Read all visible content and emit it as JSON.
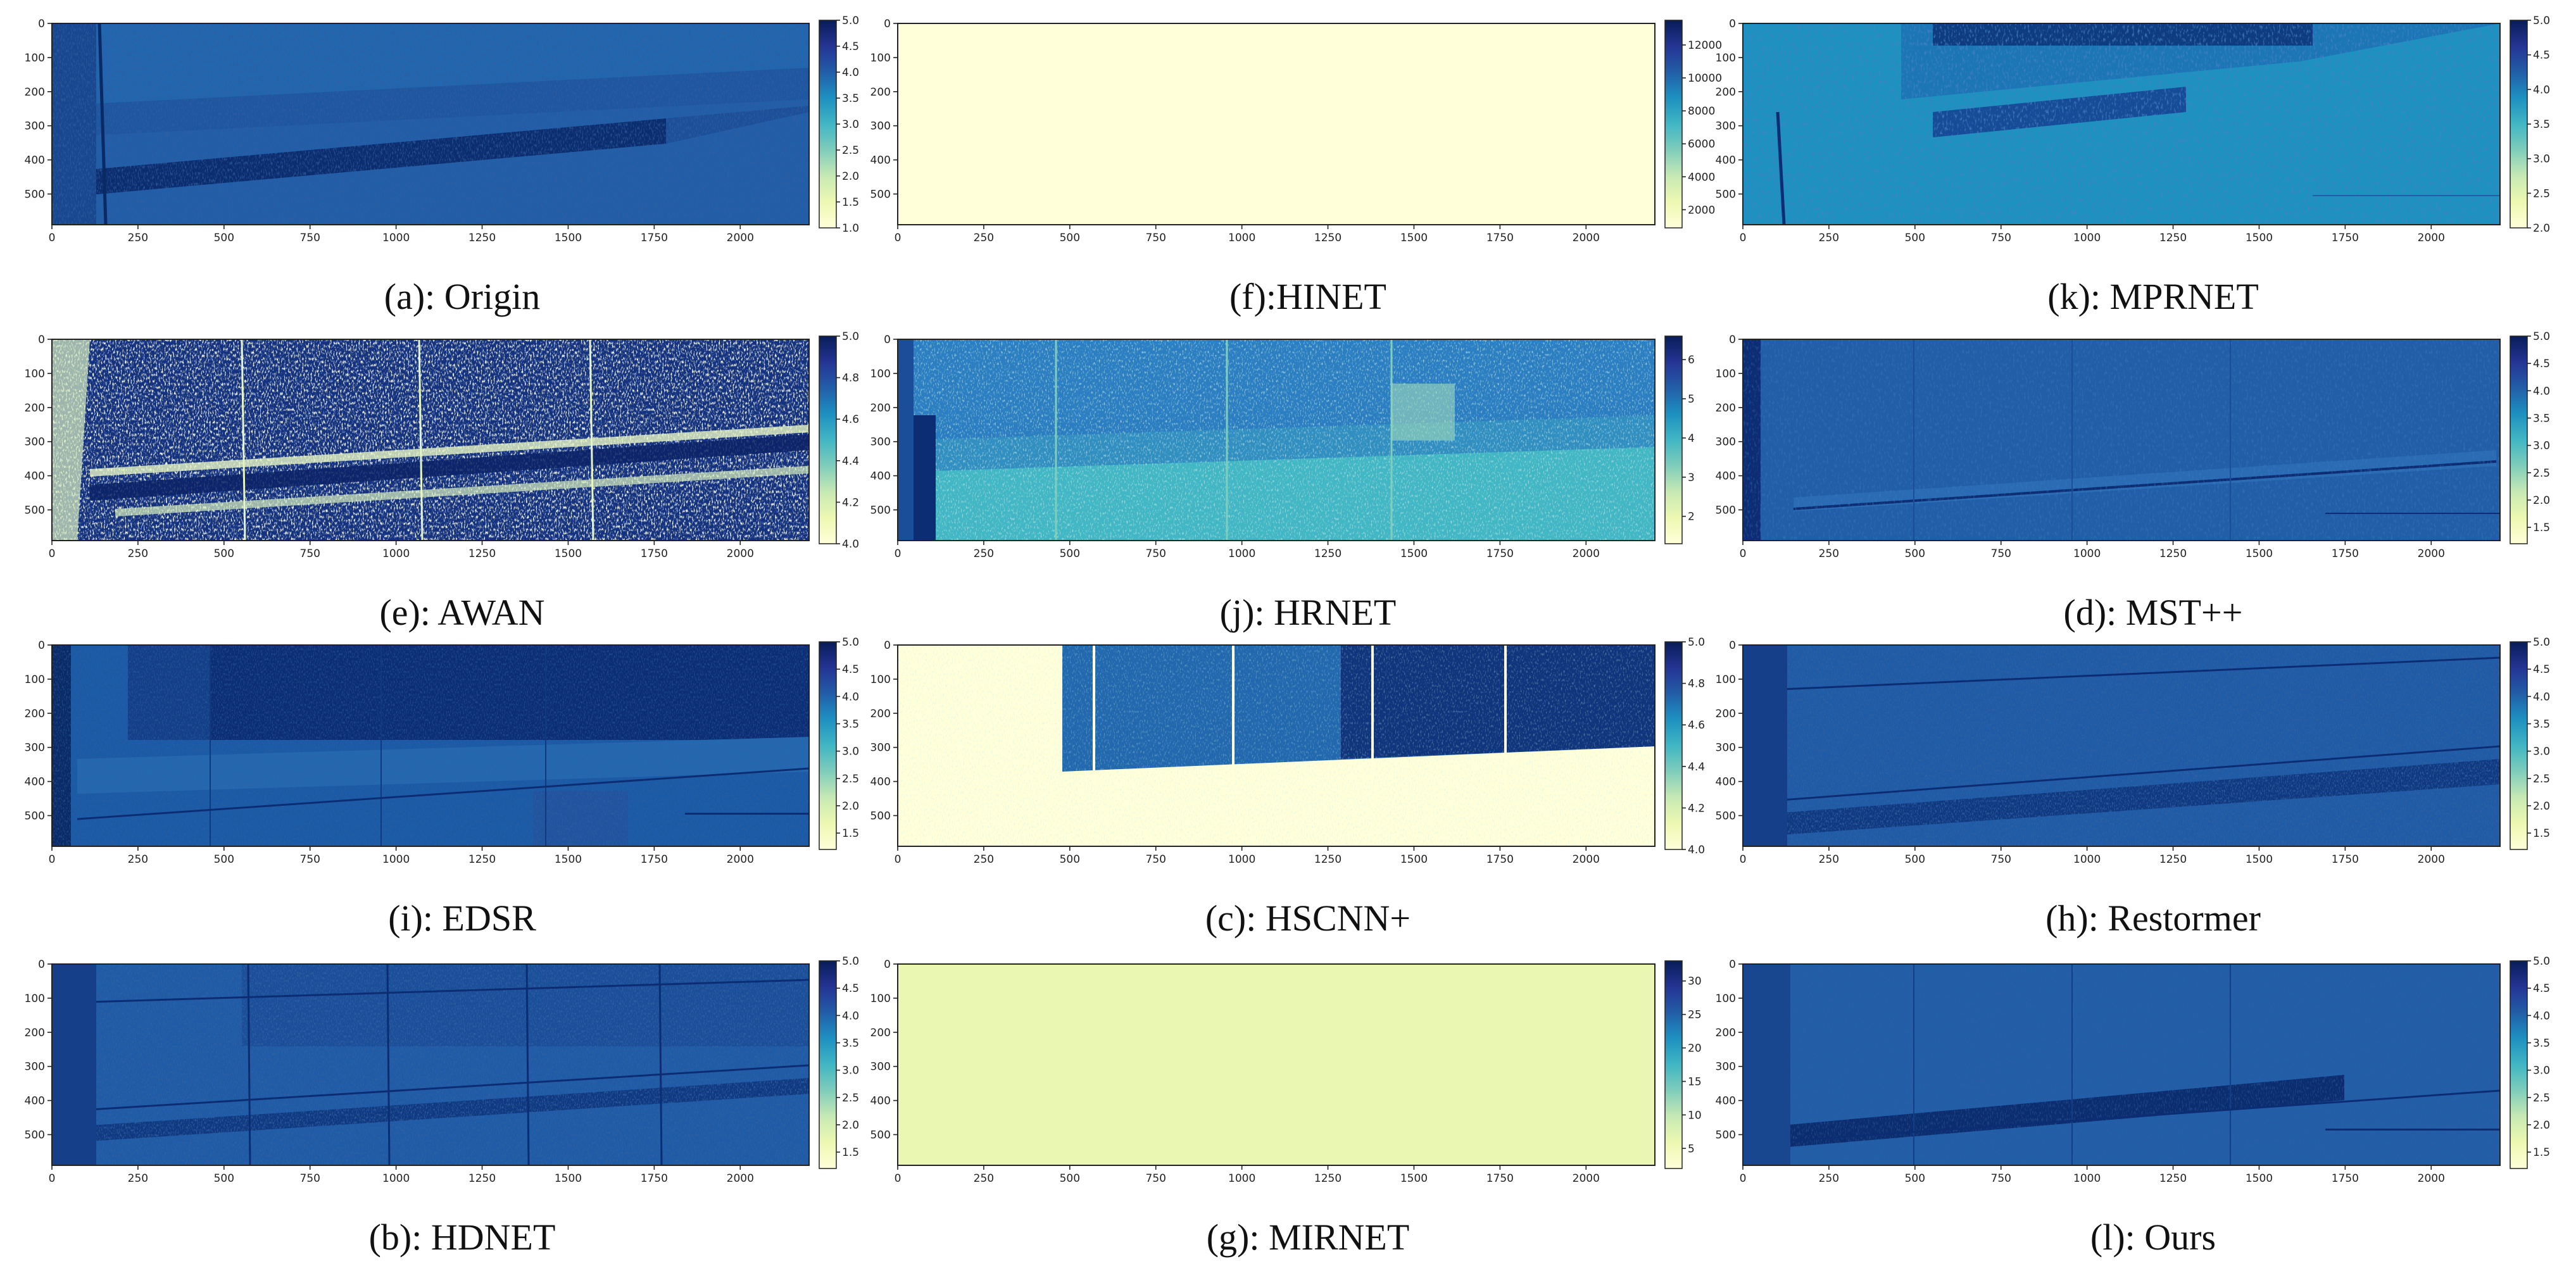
{
  "chart_data": [
    {
      "type": "heatmap",
      "caption": "(a): Origin",
      "pattern": "origin",
      "colormap": "YlGnBu",
      "x_ticks": [
        0,
        250,
        500,
        750,
        1000,
        1250,
        1500,
        1750,
        2000
      ],
      "y_ticks": [
        0,
        100,
        200,
        300,
        400,
        500
      ],
      "xlim": [
        0,
        2200
      ],
      "ylim": [
        0,
        590
      ],
      "colorbar": {
        "min": 1.0,
        "max": 5.0,
        "ticks": [
          1.0,
          1.5,
          2.0,
          2.5,
          3.0,
          3.5,
          4.0,
          4.5,
          5.0
        ],
        "labels": [
          "1.0",
          "1.5",
          "2.0",
          "2.5",
          "3.0",
          "3.5",
          "4.0",
          "4.5",
          "5.0"
        ]
      }
    },
    {
      "type": "heatmap",
      "caption": "(e): AWAN",
      "pattern": "awan",
      "colormap": "YlGnBu",
      "x_ticks": [
        0,
        250,
        500,
        750,
        1000,
        1250,
        1500,
        1750,
        2000
      ],
      "y_ticks": [
        0,
        100,
        200,
        300,
        400,
        500
      ],
      "xlim": [
        0,
        2200
      ],
      "ylim": [
        0,
        590
      ],
      "colorbar": {
        "min": 4.0,
        "max": 5.0,
        "ticks": [
          4.0,
          4.2,
          4.4,
          4.6,
          4.8,
          5.0
        ],
        "labels": [
          "4.0",
          "4.2",
          "4.4",
          "4.6",
          "4.8",
          "5.0"
        ]
      }
    },
    {
      "type": "heatmap",
      "caption": "(i): EDSR",
      "pattern": "edsr",
      "colormap": "YlGnBu",
      "x_ticks": [
        0,
        250,
        500,
        750,
        1000,
        1250,
        1500,
        1750,
        2000
      ],
      "y_ticks": [
        0,
        100,
        200,
        300,
        400,
        500
      ],
      "xlim": [
        0,
        2200
      ],
      "ylim": [
        0,
        590
      ],
      "colorbar": {
        "min": 1.2,
        "max": 5.0,
        "ticks": [
          1.5,
          2.0,
          2.5,
          3.0,
          3.5,
          4.0,
          4.5,
          5.0
        ],
        "labels": [
          "1.5",
          "2.0",
          "2.5",
          "3.0",
          "3.5",
          "4.0",
          "4.5",
          "5.0"
        ]
      }
    },
    {
      "type": "heatmap",
      "caption": "(b): HDNET",
      "pattern": "hdnet",
      "colormap": "YlGnBu",
      "x_ticks": [
        0,
        250,
        500,
        750,
        1000,
        1250,
        1500,
        1750,
        2000
      ],
      "y_ticks": [
        0,
        100,
        200,
        300,
        400,
        500
      ],
      "xlim": [
        0,
        2200
      ],
      "ylim": [
        0,
        590
      ],
      "colorbar": {
        "min": 1.2,
        "max": 5.0,
        "ticks": [
          1.5,
          2.0,
          2.5,
          3.0,
          3.5,
          4.0,
          4.5,
          5.0
        ],
        "labels": [
          "1.5",
          "2.0",
          "2.5",
          "3.0",
          "3.5",
          "4.0",
          "4.5",
          "5.0"
        ]
      }
    },
    {
      "type": "heatmap",
      "caption": "(f):HINET",
      "pattern": "hinet",
      "colormap": "YlGnBu",
      "x_ticks": [
        0,
        250,
        500,
        750,
        1000,
        1250,
        1500,
        1750,
        2000
      ],
      "y_ticks": [
        0,
        100,
        200,
        300,
        400,
        500
      ],
      "xlim": [
        0,
        2200
      ],
      "ylim": [
        0,
        590
      ],
      "colorbar": {
        "min": 900,
        "max": 13500,
        "ticks": [
          2000,
          4000,
          6000,
          8000,
          10000,
          12000
        ],
        "labels": [
          "2000",
          "4000",
          "6000",
          "8000",
          "10000",
          "12000"
        ]
      }
    },
    {
      "type": "heatmap",
      "caption": "(j): HRNET",
      "pattern": "hrnet",
      "colormap": "YlGnBu",
      "x_ticks": [
        0,
        250,
        500,
        750,
        1000,
        1250,
        1500,
        1750,
        2000
      ],
      "y_ticks": [
        0,
        100,
        200,
        300,
        400,
        500
      ],
      "xlim": [
        0,
        2200
      ],
      "ylim": [
        0,
        590
      ],
      "colorbar": {
        "min": 1.3,
        "max": 6.6,
        "ticks": [
          2,
          3,
          4,
          5,
          6
        ],
        "labels": [
          "2",
          "3",
          "4",
          "5",
          "6"
        ]
      }
    },
    {
      "type": "heatmap",
      "caption": "(c): HSCNN+",
      "pattern": "hscnn",
      "colormap": "YlGnBu",
      "x_ticks": [
        0,
        250,
        500,
        750,
        1000,
        1250,
        1500,
        1750,
        2000
      ],
      "y_ticks": [
        0,
        100,
        200,
        300,
        400,
        500
      ],
      "xlim": [
        0,
        2200
      ],
      "ylim": [
        0,
        590
      ],
      "colorbar": {
        "min": 4.0,
        "max": 5.0,
        "ticks": [
          4.0,
          4.2,
          4.4,
          4.6,
          4.8,
          5.0
        ],
        "labels": [
          "4.0",
          "4.2",
          "4.4",
          "4.6",
          "4.8",
          "5.0"
        ]
      }
    },
    {
      "type": "heatmap",
      "caption": "(g): MIRNET",
      "pattern": "mirnet",
      "colormap": "YlGnBu",
      "x_ticks": [
        0,
        250,
        500,
        750,
        1000,
        1250,
        1500,
        1750,
        2000
      ],
      "y_ticks": [
        0,
        100,
        200,
        300,
        400,
        500
      ],
      "xlim": [
        0,
        2200
      ],
      "ylim": [
        0,
        590
      ],
      "colorbar": {
        "min": 2,
        "max": 33,
        "ticks": [
          5,
          10,
          15,
          20,
          25,
          30
        ],
        "labels": [
          "5",
          "10",
          "15",
          "20",
          "25",
          "30"
        ]
      }
    },
    {
      "type": "heatmap",
      "caption": "(k): MPRNET",
      "pattern": "mprnet",
      "colormap": "YlGnBu",
      "x_ticks": [
        0,
        250,
        500,
        750,
        1000,
        1250,
        1500,
        1750,
        2000
      ],
      "y_ticks": [
        0,
        100,
        200,
        300,
        400,
        500
      ],
      "xlim": [
        0,
        2200
      ],
      "ylim": [
        0,
        590
      ],
      "colorbar": {
        "min": 2.0,
        "max": 5.0,
        "ticks": [
          2.0,
          2.5,
          3.0,
          3.5,
          4.0,
          4.5,
          5.0
        ],
        "labels": [
          "2.0",
          "2.5",
          "3.0",
          "3.5",
          "4.0",
          "4.5",
          "5.0"
        ]
      }
    },
    {
      "type": "heatmap",
      "caption": "(d): MST++",
      "pattern": "mst",
      "colormap": "YlGnBu",
      "x_ticks": [
        0,
        250,
        500,
        750,
        1000,
        1250,
        1500,
        1750,
        2000
      ],
      "y_ticks": [
        0,
        100,
        200,
        300,
        400,
        500
      ],
      "xlim": [
        0,
        2200
      ],
      "ylim": [
        0,
        590
      ],
      "colorbar": {
        "min": 1.2,
        "max": 5.0,
        "ticks": [
          1.5,
          2.0,
          2.5,
          3.0,
          3.5,
          4.0,
          4.5,
          5.0
        ],
        "labels": [
          "1.5",
          "2.0",
          "2.5",
          "3.0",
          "3.5",
          "4.0",
          "4.5",
          "5.0"
        ]
      }
    },
    {
      "type": "heatmap",
      "caption": "(h): Restormer",
      "pattern": "restormer",
      "colormap": "YlGnBu",
      "x_ticks": [
        0,
        250,
        500,
        750,
        1000,
        1250,
        1500,
        1750,
        2000
      ],
      "y_ticks": [
        0,
        100,
        200,
        300,
        400,
        500
      ],
      "xlim": [
        0,
        2200
      ],
      "ylim": [
        0,
        590
      ],
      "colorbar": {
        "min": 1.2,
        "max": 5.0,
        "ticks": [
          1.5,
          2.0,
          2.5,
          3.0,
          3.5,
          4.0,
          4.5,
          5.0
        ],
        "labels": [
          "1.5",
          "2.0",
          "2.5",
          "3.0",
          "3.5",
          "4.0",
          "4.5",
          "5.0"
        ]
      }
    },
    {
      "type": "heatmap",
      "caption": "(l): Ours",
      "pattern": "ours",
      "colormap": "YlGnBu",
      "x_ticks": [
        0,
        250,
        500,
        750,
        1000,
        1250,
        1500,
        1750,
        2000
      ],
      "y_ticks": [
        0,
        100,
        200,
        300,
        400,
        500
      ],
      "xlim": [
        0,
        2200
      ],
      "ylim": [
        0,
        590
      ],
      "colorbar": {
        "min": 1.2,
        "max": 5.0,
        "ticks": [
          1.5,
          2.0,
          2.5,
          3.0,
          3.5,
          4.0,
          4.5,
          5.0
        ],
        "labels": [
          "1.5",
          "2.0",
          "2.5",
          "3.0",
          "3.5",
          "4.0",
          "4.5",
          "5.0"
        ]
      }
    }
  ]
}
